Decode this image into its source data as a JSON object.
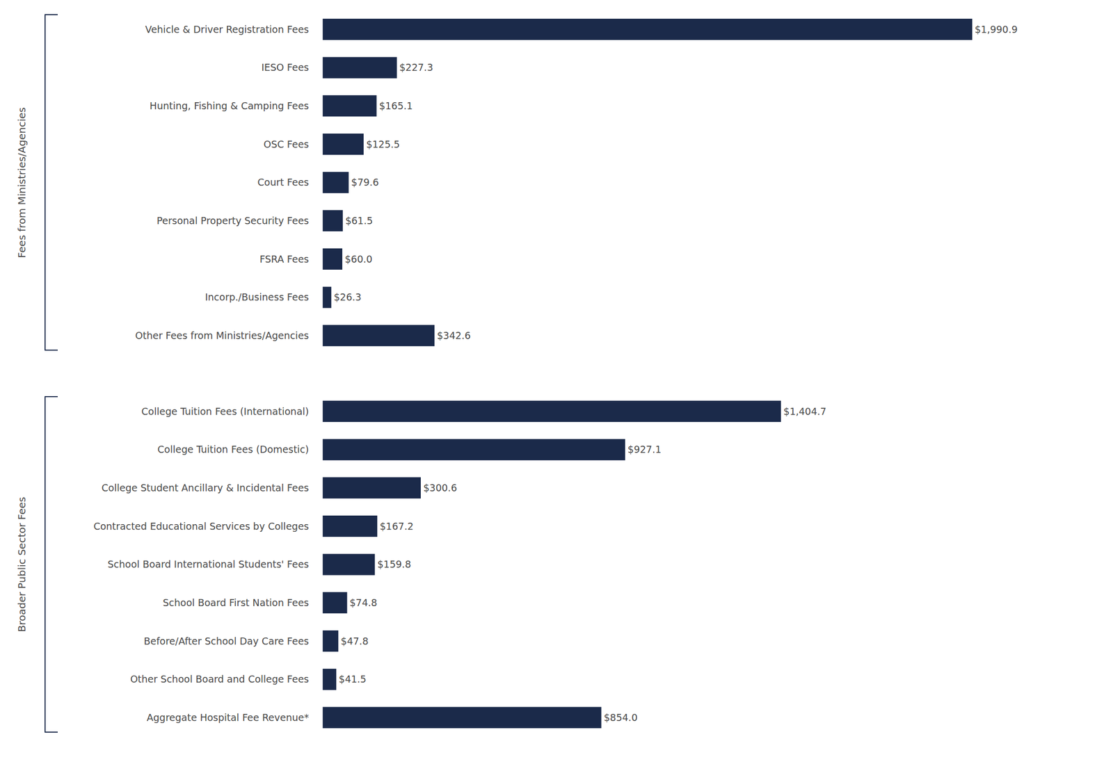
{
  "chart_data": [
    {
      "type": "bar",
      "orientation": "horizontal",
      "title": "Fees from Ministries/Agencies",
      "categories": [
        "Vehicle & Driver Registration Fees",
        "IESO Fees",
        "Hunting, Fishing & Camping Fees",
        "OSC Fees",
        "Court Fees",
        "Personal Property Security Fees",
        "FSRA Fees",
        "Incorp./Business Fees",
        "Other Fees from Ministries/Agencies"
      ],
      "values": [
        1990.9,
        227.3,
        165.1,
        125.5,
        79.6,
        61.5,
        60.0,
        26.3,
        342.6
      ],
      "value_labels": [
        "$1,990.9",
        "$227.3",
        "$165.1",
        "$125.5",
        "$79.6",
        "$61.5",
        "$60.0",
        "$26.3",
        "$342.6"
      ],
      "color": "#1b2a4a",
      "xlim": [
        -30,
        2329.353
      ],
      "data_labels": true,
      "tick_labels": "y"
    },
    {
      "type": "bar",
      "orientation": "horizontal",
      "title": "Broader Public Sector Fees",
      "categories": [
        "College Tuition Fees (International)",
        "College Tuition Fees (Domestic)",
        "College Student Ancillary & Incidental Fees",
        "Contracted Educational Services by Colleges",
        "School Board International Students' Fees",
        "School Board First Nation Fees",
        "Before/After School Day Care Fees",
        "Other School Board and College Fees",
        "Aggregate Hospital Fee Revenue*"
      ],
      "values": [
        1404.7,
        927.1,
        300.6,
        167.2,
        159.8,
        74.8,
        47.8,
        41.5,
        854.0
      ],
      "value_labels": [
        "$1,404.7",
        "$927.1",
        "$300.6",
        "$167.2",
        "$159.8",
        "$74.8",
        "$47.8",
        "$41.5",
        "$854.0"
      ],
      "color": "#1b2a4a",
      "xlim": [
        -30,
        2329.353
      ],
      "data_labels": true,
      "tick_labels": "y"
    }
  ]
}
